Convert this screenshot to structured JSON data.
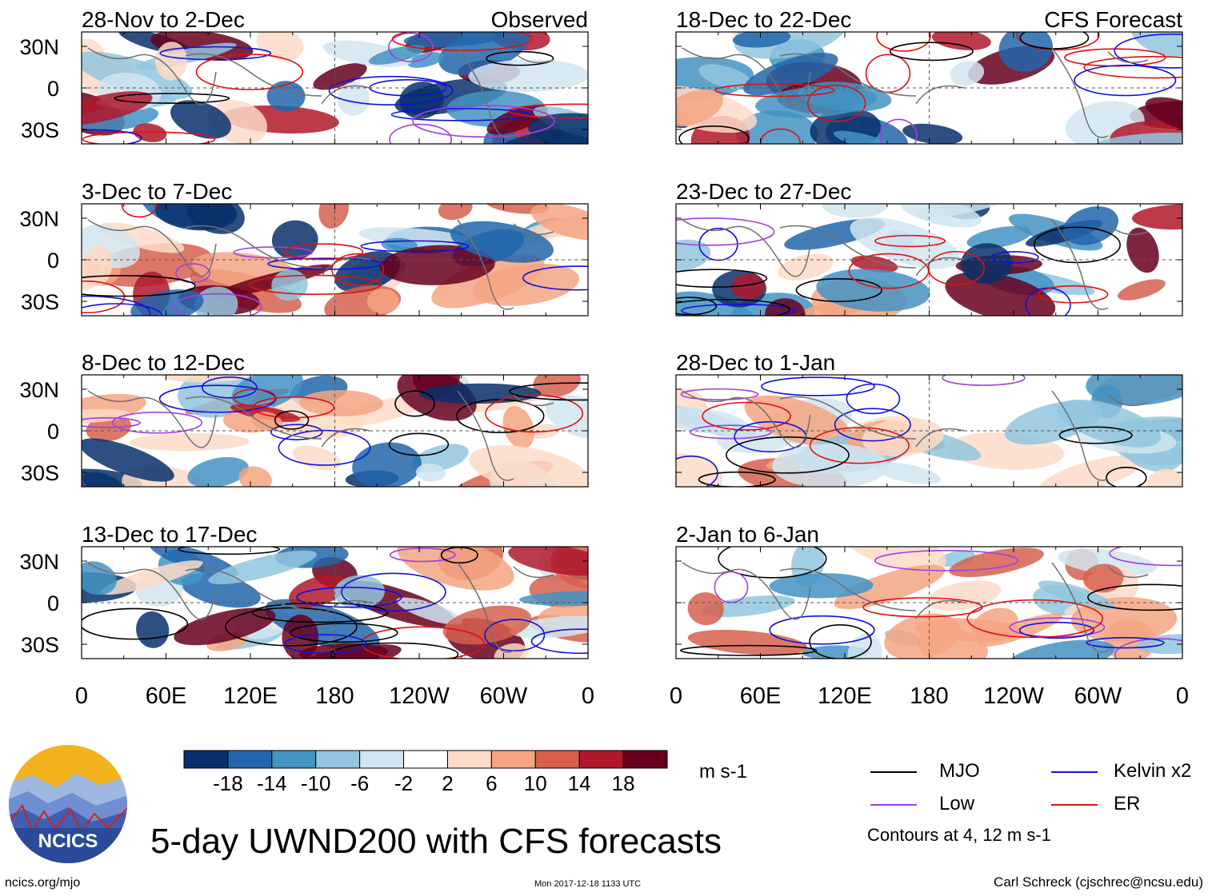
{
  "chart_data": {
    "type": "heatmap",
    "title": "5-day UWND200 with CFS forecasts",
    "variable": "UWND200",
    "units": "m s-1",
    "x_ticks": [
      "0",
      "60E",
      "120E",
      "180",
      "120W",
      "60W",
      "0"
    ],
    "y_ticks": [
      "30N",
      "0",
      "30S"
    ],
    "xlim": [
      0,
      360
    ],
    "ylim": [
      -40,
      40
    ],
    "panels": [
      {
        "id": "p1",
        "period": "28-Nov to 2-Dec",
        "tag": "Observed",
        "source": "observed"
      },
      {
        "id": "p2",
        "period": "3-Dec to 7-Dec",
        "tag": "",
        "source": "observed"
      },
      {
        "id": "p3",
        "period": "8-Dec to 12-Dec",
        "tag": "",
        "source": "observed"
      },
      {
        "id": "p4",
        "period": "13-Dec to 17-Dec",
        "tag": "",
        "source": "observed"
      },
      {
        "id": "p5",
        "period": "18-Dec to 22-Dec",
        "tag": "CFS Forecast",
        "source": "forecast"
      },
      {
        "id": "p6",
        "period": "23-Dec to 27-Dec",
        "tag": "",
        "source": "forecast"
      },
      {
        "id": "p7",
        "period": "28-Dec to 1-Jan",
        "tag": "",
        "source": "forecast"
      },
      {
        "id": "p8",
        "period": "2-Jan to 6-Jan",
        "tag": "",
        "source": "forecast"
      }
    ],
    "colorbar": {
      "labels": [
        "-18",
        "-14",
        "-10",
        "-6",
        "-2",
        "2",
        "6",
        "10",
        "14",
        "18"
      ],
      "colors": [
        "#08306b",
        "#2166ac",
        "#4393c3",
        "#92c5de",
        "#d1e5f0",
        "#ffffff",
        "#fddbc7",
        "#f4a582",
        "#d6604d",
        "#b2182b",
        "#67001f"
      ]
    },
    "contour_legend": [
      {
        "name": "MJO",
        "color": "#000000"
      },
      {
        "name": "Kelvin x2",
        "color": "#1010e0"
      },
      {
        "name": "Low",
        "color": "#a040e0"
      },
      {
        "name": "ER",
        "color": "#e01010"
      }
    ],
    "contour_note": "Contours at 4, 12 m s-1"
  },
  "footer": {
    "logo_text": "NCICS",
    "url": "ncics.org/mjo",
    "timestamp": "Mon 2017-12-18 1133 UTC",
    "credit": "Carl Schreck (cjschrec@ncsu.edu)"
  }
}
